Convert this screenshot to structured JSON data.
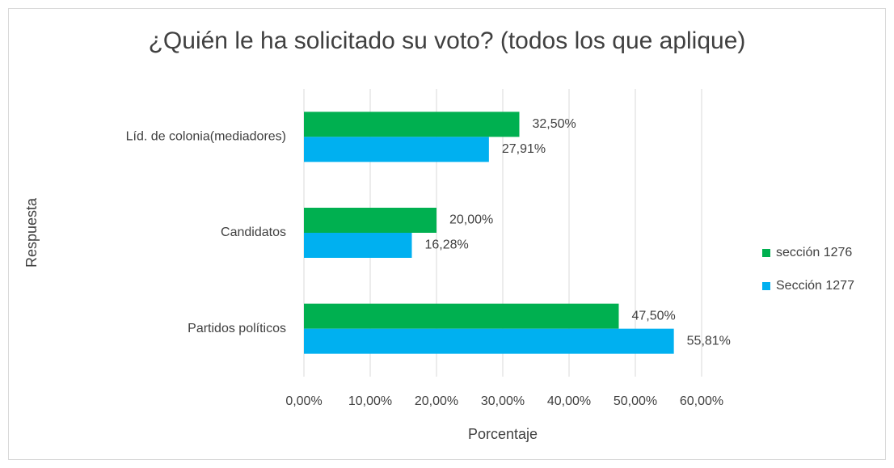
{
  "chart_data": {
    "type": "bar",
    "orientation": "horizontal",
    "title": "¿Quién le ha solicitado su voto? (todos los que aplique)",
    "x_label": "Porcentaje",
    "y_label": "Respuesta",
    "categories": [
      "Líd. de colonia(mediadores)",
      "Candidatos",
      "Partidos políticos"
    ],
    "series": [
      {
        "name": "sección 1276",
        "color": "#00b050",
        "values": [
          32.5,
          20,
          47.5
        ],
        "value_labels": [
          "32,50%",
          "20,00%",
          "47,50%"
        ]
      },
      {
        "name": "Sección 1277",
        "color": "#00b0f0",
        "values": [
          27.91,
          16.28,
          55.81
        ],
        "value_labels": [
          "27,91%",
          "16,28%",
          "55,81%"
        ]
      }
    ],
    "xlim": [
      0,
      60
    ],
    "xticks": [
      {
        "value": 0,
        "label": "0,00%"
      },
      {
        "value": 10,
        "label": "10,00%"
      },
      {
        "value": 20,
        "label": "20,00%"
      },
      {
        "value": 30,
        "label": "30,00%"
      },
      {
        "value": 40,
        "label": "40,00%"
      },
      {
        "value": 50,
        "label": "50,00%"
      },
      {
        "value": 60,
        "label": "60,00%"
      }
    ],
    "grid": true,
    "legend": "right"
  }
}
